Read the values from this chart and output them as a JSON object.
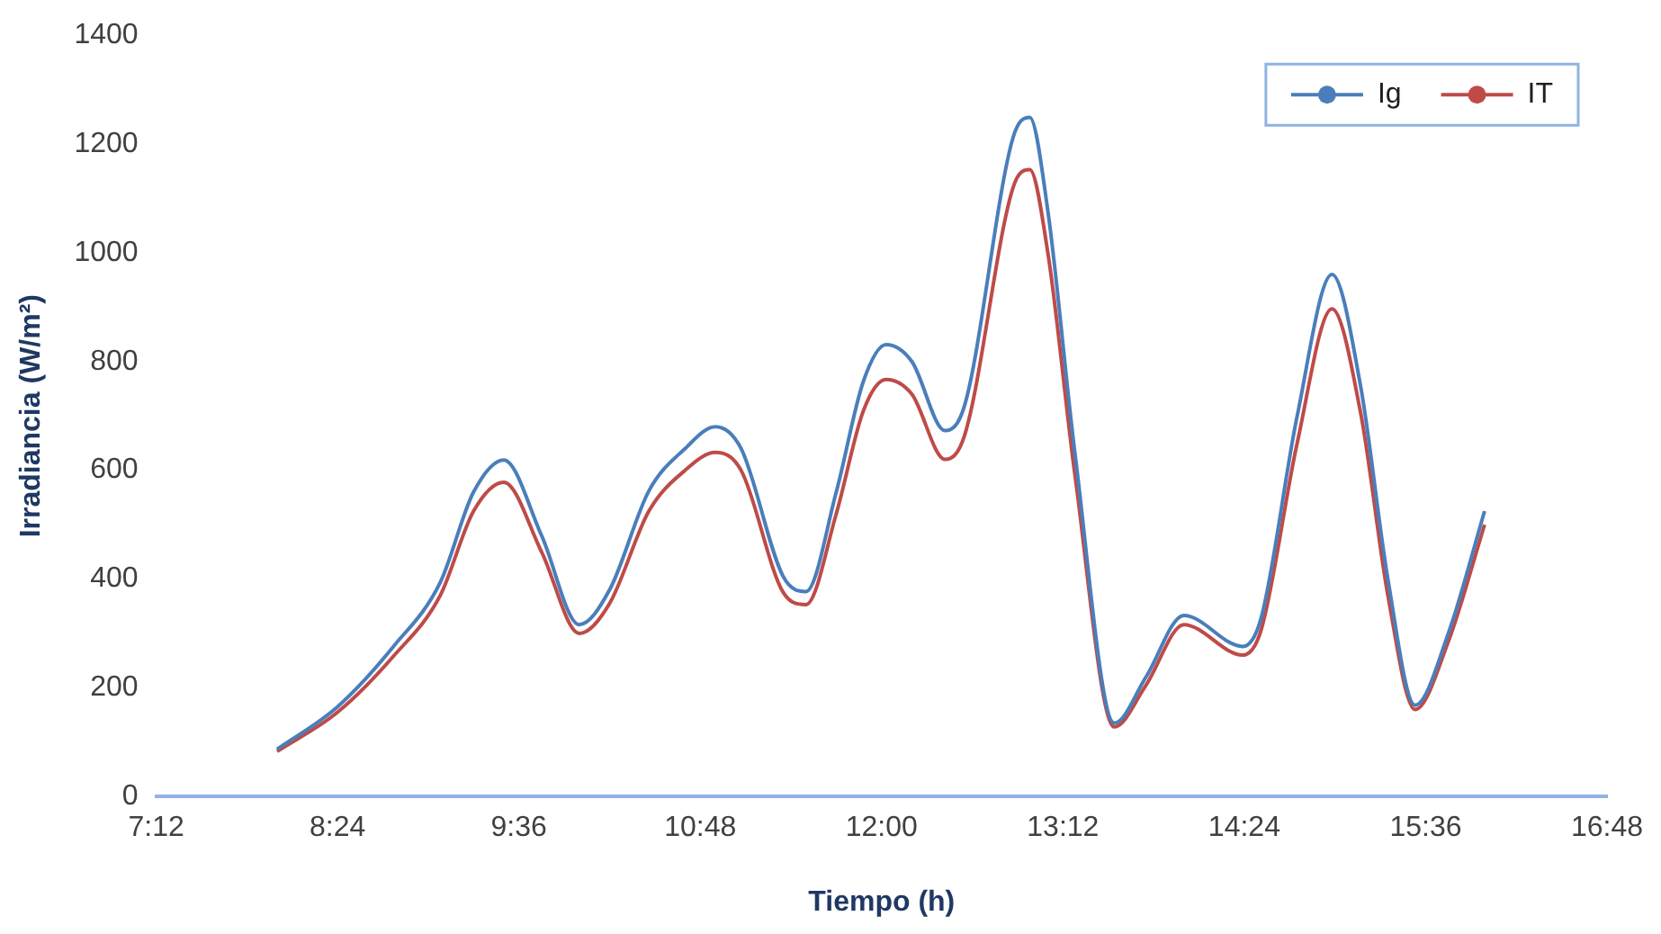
{
  "chart_data": {
    "type": "line",
    "xlabel": "Tiempo (h)",
    "ylabel": "Irradiancia (W/m²)",
    "x": [
      8.0,
      8.4,
      8.77,
      9.08,
      9.3,
      9.5,
      9.75,
      10.0,
      10.2,
      10.46,
      10.7,
      10.9,
      11.07,
      11.35,
      11.5,
      11.7,
      11.88,
      12.03,
      12.2,
      12.42,
      12.55,
      12.87,
      12.98,
      13.1,
      13.28,
      13.54,
      13.75,
      14.0,
      14.39,
      14.51,
      14.75,
      14.98,
      15.17,
      15.35,
      15.53,
      15.75,
      15.99
    ],
    "series": [
      {
        "name": "Ig",
        "color": "#4a7ebb",
        "values": [
          87,
          165,
          276,
          394,
          560,
          619,
          480,
          316,
          380,
          562,
          640,
          680,
          640,
          404,
          377,
          560,
          764,
          831,
          800,
          673,
          720,
          1212,
          1249,
          1077,
          630,
          135,
          220,
          333,
          276,
          327,
          700,
          960,
          754,
          400,
          168,
          300,
          525
        ]
      },
      {
        "name": "IT",
        "color": "#be4b48",
        "values": [
          83,
          155,
          258,
          370,
          525,
          578,
          450,
          300,
          355,
          525,
          600,
          633,
          600,
          375,
          353,
          520,
          710,
          767,
          740,
          620,
          665,
          1120,
          1153,
          1000,
          590,
          128,
          205,
          316,
          260,
          305,
          650,
          897,
          705,
          370,
          160,
          285,
          500
        ]
      }
    ],
    "xlim": [
      7.2,
      16.8
    ],
    "xticks": [
      {
        "value": 7.2,
        "label": "7:12"
      },
      {
        "value": 8.4,
        "label": "8:24"
      },
      {
        "value": 9.6,
        "label": "9:36"
      },
      {
        "value": 10.8,
        "label": "10:48"
      },
      {
        "value": 12.0,
        "label": "12:00"
      },
      {
        "value": 13.2,
        "label": "13:12"
      },
      {
        "value": 14.4,
        "label": "14:24"
      },
      {
        "value": 15.6,
        "label": "15:36"
      },
      {
        "value": 16.8,
        "label": "16:48"
      }
    ],
    "ylim": [
      0,
      1400
    ],
    "yticks": [
      0,
      200,
      400,
      600,
      800,
      1000,
      1200,
      1400
    ],
    "legend": "top right",
    "marker": "none",
    "line_style": "solid"
  }
}
